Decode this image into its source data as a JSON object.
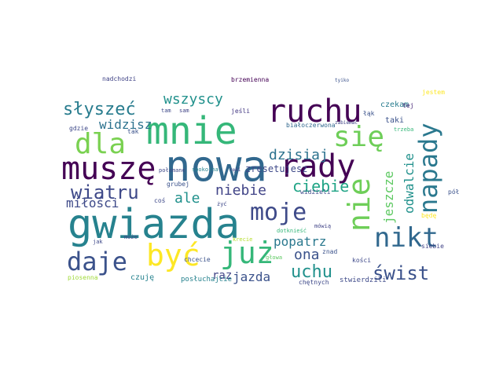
{
  "words": [
    {
      "text": "nowa",
      "color": "#31688e"
    },
    {
      "text": "gwiazda",
      "color": "#26828e"
    },
    {
      "text": "mnie",
      "color": "#35b779"
    },
    {
      "text": "muszę",
      "color": "#440154"
    },
    {
      "text": "rady",
      "color": "#440154"
    },
    {
      "text": "ruchu",
      "color": "#440154"
    },
    {
      "text": "już",
      "color": "#35b779"
    },
    {
      "text": "być",
      "color": "#fde725"
    },
    {
      "text": "nie",
      "color": "#6ece58"
    },
    {
      "text": "dla",
      "color": "#7ad151"
    },
    {
      "text": "się",
      "color": "#6ece58"
    },
    {
      "text": "napady",
      "color": "#2a788e"
    },
    {
      "text": "nikt",
      "color": "#31688e"
    },
    {
      "text": "daje",
      "color": "#3b528b"
    },
    {
      "text": "moje",
      "color": "#3e4a89"
    },
    {
      "text": "słyszeć",
      "color": "#287c8e"
    },
    {
      "text": "wiatru",
      "color": "#3e4989"
    },
    {
      "text": "świst",
      "color": "#3b528b"
    },
    {
      "text": "ciebie",
      "color": "#20a486"
    },
    {
      "text": "niebie",
      "color": "#414487"
    },
    {
      "text": "dzisiaj",
      "color": "#2c728e"
    },
    {
      "text": "uchu",
      "color": "#21918c"
    },
    {
      "text": "ona",
      "color": "#3b528b"
    },
    {
      "text": "jazda",
      "color": "#3b528b"
    },
    {
      "text": "wszyscy",
      "color": "#21918c"
    },
    {
      "text": "widzisz",
      "color": "#2c728e"
    },
    {
      "text": "ale",
      "color": "#21918c"
    },
    {
      "text": "popatrz",
      "color": "#2a788e"
    },
    {
      "text": "odwalcie",
      "color": "#21918c"
    },
    {
      "text": "jeszcze",
      "color": "#5ec962"
    },
    {
      "text": "miłości",
      "color": "#3e4a89"
    },
    {
      "text": "raz",
      "color": "#414487"
    },
    {
      "text": "zresetujesz",
      "color": "#3e4989"
    },
    {
      "text": "czekam",
      "color": "#287c8e"
    },
    {
      "text": "nadchodzi",
      "color": "#414487"
    },
    {
      "text": "brzemienna",
      "color": "#440154"
    },
    {
      "text": "tyiko",
      "color": "#3b528b"
    },
    {
      "text": "tam",
      "color": "#3e4989"
    },
    {
      "text": "sam",
      "color": "#414487"
    },
    {
      "text": "jeśli",
      "color": "#443983"
    },
    {
      "text": "tak",
      "color": "#3b528b"
    },
    {
      "text": "gdzie",
      "color": "#3e4989"
    },
    {
      "text": "taki",
      "color": "#3b528b"
    },
    {
      "text": "tej",
      "color": "#482878"
    },
    {
      "text": "jestem",
      "color": "#fde725"
    },
    {
      "text": "białoczerwona",
      "color": "#31688e"
    },
    {
      "text": "połamane",
      "color": "#3e4989"
    },
    {
      "text": "spokojna",
      "color": "#26828e"
    },
    {
      "text": "ręki",
      "color": "#414487"
    },
    {
      "text": "grubej",
      "color": "#3b528b"
    },
    {
      "text": "widzieli",
      "color": "#3e4a89"
    },
    {
      "text": "coś",
      "color": "#3e4989"
    },
    {
      "text": "pół",
      "color": "#3b528b"
    },
    {
      "text": "może",
      "color": "#414487"
    },
    {
      "text": "jak",
      "color": "#3e4989"
    },
    {
      "text": "chcecie",
      "color": "#3b528b"
    },
    {
      "text": "krecie",
      "color": "#b5de2b"
    },
    {
      "text": "dotknieść",
      "color": "#35b779"
    },
    {
      "text": "mówią",
      "color": "#414487"
    },
    {
      "text": "znad",
      "color": "#3b528b"
    },
    {
      "text": "kości",
      "color": "#3e4989"
    },
    {
      "text": "siebie",
      "color": "#414487"
    },
    {
      "text": "czuję",
      "color": "#26828e"
    },
    {
      "text": "posłuchajcie",
      "color": "#26828e"
    },
    {
      "text": "chętnych",
      "color": "#3e4989"
    },
    {
      "text": "stwierdzili",
      "color": "#3e4a89"
    },
    {
      "text": "piosenna",
      "color": "#a0da39"
    },
    {
      "text": "głowa",
      "color": "#5ec962"
    },
    {
      "text": "będę",
      "color": "#fde725"
    },
    {
      "text": "żyć",
      "color": "#3e4989"
    },
    {
      "text": "trzeba",
      "color": "#35b779"
    },
    {
      "text": "łąk",
      "color": "#3b528b"
    },
    {
      "text": "zabiemać",
      "color": "#414487"
    }
  ]
}
